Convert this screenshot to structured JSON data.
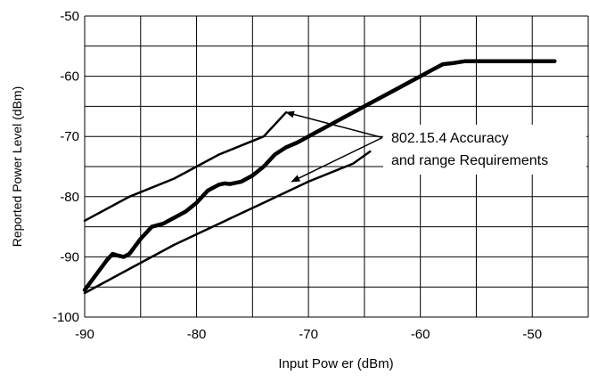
{
  "chart_data": {
    "type": "line",
    "title": "",
    "xlabel": "Input Pow er (dBm)",
    "ylabel": "Reported Power Level (dBm)",
    "xlim": [
      -90,
      -45
    ],
    "ylim": [
      -100,
      -50
    ],
    "x_ticks": [
      -90,
      -80,
      -70,
      -60,
      -50
    ],
    "x_tick_labels": [
      "-90",
      "-80",
      "-70",
      "-60",
      "-50"
    ],
    "x_gridlines": [
      -90,
      -85,
      -80,
      -75,
      -70,
      -65,
      -60,
      -55,
      -50,
      -45
    ],
    "y_ticks": [
      -100,
      -90,
      -80,
      -70,
      -60,
      -50
    ],
    "y_tick_labels": [
      "-100",
      "-90",
      "-80",
      "-70",
      "-60",
      "-50"
    ],
    "y_gridlines": [
      -100,
      -95,
      -90,
      -85,
      -80,
      -75,
      -70,
      -65,
      -60,
      -55,
      -50
    ],
    "grid": true,
    "legend": "none",
    "colors": {
      "line": "#000000",
      "grid": "#000000",
      "background": "#ffffff"
    },
    "series": [
      {
        "role": "measured",
        "stroke_weight": "heavy",
        "x": [
          -90,
          -89,
          -88,
          -87.5,
          -87,
          -86.5,
          -86,
          -85,
          -84,
          -83,
          -82,
          -81,
          -80,
          -79,
          -78,
          -77.5,
          -77,
          -76,
          -75,
          -74,
          -73,
          -72,
          -71,
          -70,
          -69,
          -68,
          -67,
          -66,
          -65,
          -64,
          -63,
          -62,
          -61,
          -60,
          -59,
          -58,
          -57,
          -56,
          -55,
          -54,
          -53,
          -52,
          -51,
          -50,
          -49,
          -48
        ],
        "y": [
          -95.5,
          -93,
          -90.5,
          -89.5,
          -89.8,
          -90,
          -89.5,
          -87,
          -85,
          -84.5,
          -83.5,
          -82.5,
          -81,
          -79,
          -78,
          -77.8,
          -77.9,
          -77.5,
          -76.5,
          -75,
          -73,
          -71.8,
          -71,
          -70,
          -69,
          -68,
          -67,
          -66,
          -65,
          -64,
          -63,
          -62,
          -61,
          -60,
          -59,
          -58,
          -57.8,
          -57.5,
          -57.5,
          -57.5,
          -57.5,
          -57.5,
          -57.5,
          -57.5,
          -57.5,
          -57.5
        ]
      },
      {
        "role": "requirement-upper",
        "stroke_weight": "thin",
        "x": [
          -90,
          -86,
          -82,
          -78,
          -74,
          -72
        ],
        "y": [
          -84,
          -80,
          -77,
          -73,
          -70,
          -66
        ]
      },
      {
        "role": "requirement-lower",
        "stroke_weight": "thin",
        "x": [
          -90,
          -86,
          -82,
          -78,
          -74,
          -70,
          -66,
          -64.5
        ],
        "y": [
          -96,
          -92,
          -88,
          -84.5,
          -81,
          -77.5,
          -74.5,
          -72.5
        ]
      }
    ],
    "annotations": [
      {
        "text_lines": [
          "802.15.4 Accuracy",
          "and range Requirements"
        ],
        "arrows_to": [
          {
            "x": -72,
            "y": -66
          },
          {
            "x": -71.5,
            "y": -77.5
          }
        ]
      }
    ]
  }
}
